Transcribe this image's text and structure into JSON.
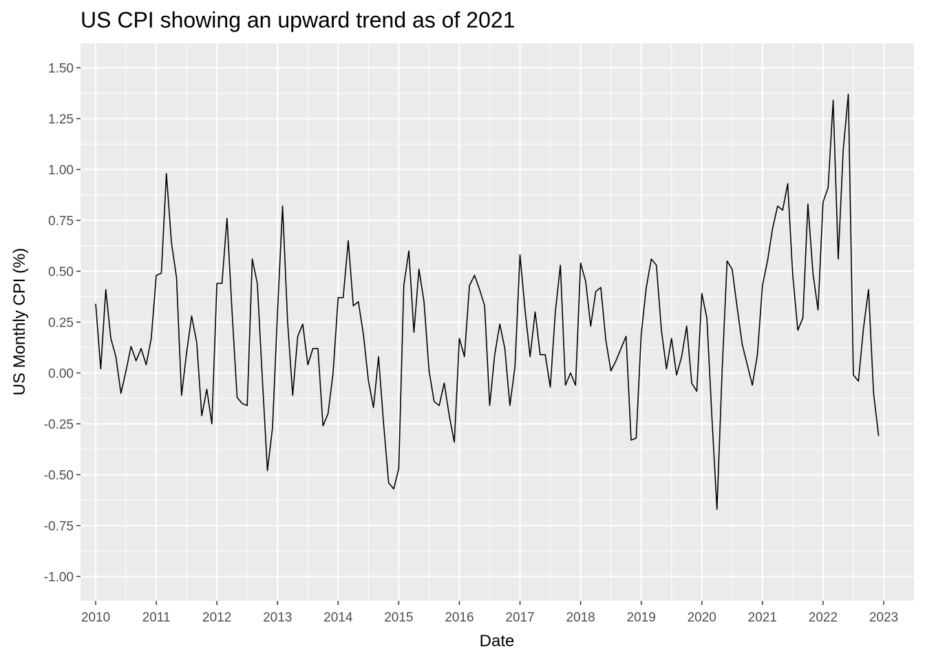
{
  "chart_data": {
    "type": "line",
    "title": "US CPI showing an upward trend as of 2021",
    "xlabel": "Date",
    "ylabel": "US Monthly CPI (%)",
    "xlim": [
      "2009-10-01",
      "2023-07-01"
    ],
    "ylim": [
      -1.12,
      1.62
    ],
    "x_ticks": [
      "2010",
      "2011",
      "2012",
      "2013",
      "2014",
      "2015",
      "2016",
      "2017",
      "2018",
      "2019",
      "2020",
      "2021",
      "2022",
      "2023"
    ],
    "y_ticks": [
      "1.50",
      "1.25",
      "1.00",
      "0.75",
      "0.50",
      "0.25",
      "0.00",
      "-0.25",
      "-0.50",
      "-0.75",
      "-1.00"
    ],
    "grid": true,
    "legend": "none",
    "line_color": "#000000",
    "panel_color": "#ebebeb",
    "series": [
      {
        "x": [
          "2010-01",
          "2010-02",
          "2010-03",
          "2010-04",
          "2010-05",
          "2010-06",
          "2010-07",
          "2010-08",
          "2010-09",
          "2010-10",
          "2010-11",
          "2010-12",
          "2011-01",
          "2011-02",
          "2011-03",
          "2011-04",
          "2011-05",
          "2011-06",
          "2011-07",
          "2011-08",
          "2011-09",
          "2011-10",
          "2011-11",
          "2011-12",
          "2012-01",
          "2012-02",
          "2012-03",
          "2012-04",
          "2012-05",
          "2012-06",
          "2012-07",
          "2012-08",
          "2012-09",
          "2012-10",
          "2012-11",
          "2012-12",
          "2013-01",
          "2013-02",
          "2013-03",
          "2013-04",
          "2013-05",
          "2013-06",
          "2013-07",
          "2013-08",
          "2013-09",
          "2013-10",
          "2013-11",
          "2013-12",
          "2014-01",
          "2014-02",
          "2014-03",
          "2014-04",
          "2014-05",
          "2014-06",
          "2014-07",
          "2014-08",
          "2014-09",
          "2014-10",
          "2014-11",
          "2014-12",
          "2015-01",
          "2015-02",
          "2015-03",
          "2015-04",
          "2015-05",
          "2015-06",
          "2015-07",
          "2015-08",
          "2015-09",
          "2015-10",
          "2015-11",
          "2015-12",
          "2016-01",
          "2016-02",
          "2016-03",
          "2016-04",
          "2016-05",
          "2016-06",
          "2016-07",
          "2016-08",
          "2016-09",
          "2016-10",
          "2016-11",
          "2016-12",
          "2017-01",
          "2017-02",
          "2017-03",
          "2017-04",
          "2017-05",
          "2017-06",
          "2017-07",
          "2017-08",
          "2017-09",
          "2017-10",
          "2017-11",
          "2017-12",
          "2018-01",
          "2018-02",
          "2018-03",
          "2018-04",
          "2018-05",
          "2018-06",
          "2018-07",
          "2018-08",
          "2018-09",
          "2018-10",
          "2018-11",
          "2018-12",
          "2019-01",
          "2019-02",
          "2019-03",
          "2019-04",
          "2019-05",
          "2019-06",
          "2019-07",
          "2019-08",
          "2019-09",
          "2019-10",
          "2019-11",
          "2019-12",
          "2020-01",
          "2020-02",
          "2020-03",
          "2020-04",
          "2020-05",
          "2020-06",
          "2020-07",
          "2020-08",
          "2020-09",
          "2020-10",
          "2020-11",
          "2020-12",
          "2021-01",
          "2021-02",
          "2021-03",
          "2021-04",
          "2021-05",
          "2021-06",
          "2021-07",
          "2021-08",
          "2021-09",
          "2021-10",
          "2021-11",
          "2021-12",
          "2022-01",
          "2022-02",
          "2022-03",
          "2022-04",
          "2022-05",
          "2022-06",
          "2022-07",
          "2022-08",
          "2022-09",
          "2022-10",
          "2022-11",
          "2022-12"
        ],
        "y": [
          0.34,
          0.02,
          0.41,
          0.17,
          0.08,
          -0.1,
          0.01,
          0.13,
          0.06,
          0.12,
          0.04,
          0.17,
          0.48,
          0.49,
          0.98,
          0.64,
          0.47,
          -0.11,
          0.1,
          0.28,
          0.15,
          -0.21,
          -0.08,
          -0.25,
          0.44,
          0.44,
          0.76,
          0.3,
          -0.12,
          -0.15,
          -0.16,
          0.56,
          0.44,
          -0.03,
          -0.48,
          -0.27,
          0.3,
          0.82,
          0.25,
          -0.11,
          0.18,
          0.24,
          0.04,
          0.12,
          0.12,
          -0.26,
          -0.2,
          0.0,
          0.37,
          0.37,
          0.65,
          0.33,
          0.35,
          0.19,
          -0.04,
          -0.17,
          0.08,
          -0.25,
          -0.54,
          -0.57,
          -0.47,
          0.43,
          0.6,
          0.2,
          0.51,
          0.35,
          0.01,
          -0.14,
          -0.16,
          -0.05,
          -0.21,
          -0.34,
          0.17,
          0.08,
          0.43,
          0.48,
          0.41,
          0.33,
          -0.16,
          0.09,
          0.24,
          0.12,
          -0.16,
          0.03,
          0.58,
          0.31,
          0.08,
          0.3,
          0.09,
          0.09,
          -0.07,
          0.3,
          0.53,
          -0.06,
          0.0,
          -0.06,
          0.54,
          0.45,
          0.23,
          0.4,
          0.42,
          0.16,
          0.01,
          0.06,
          0.12,
          0.18,
          -0.33,
          -0.32,
          0.19,
          0.42,
          0.56,
          0.53,
          0.21,
          0.02,
          0.17,
          -0.01,
          0.08,
          0.23,
          -0.05,
          -0.09,
          0.39,
          0.27,
          -0.22,
          -0.67,
          0.0,
          0.55,
          0.51,
          0.32,
          0.14,
          0.04,
          -0.06,
          0.09,
          0.43,
          0.55,
          0.71,
          0.82,
          0.8,
          0.93,
          0.48,
          0.21,
          0.27,
          0.83,
          0.49,
          0.31,
          0.84,
          0.91,
          1.34,
          0.56,
          1.1,
          1.37,
          -0.01,
          -0.04,
          0.22,
          0.41,
          -0.1,
          -0.31
        ]
      }
    ]
  }
}
